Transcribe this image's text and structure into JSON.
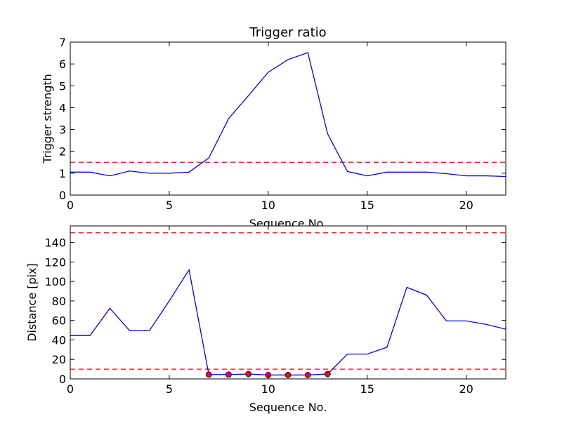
{
  "chart_data": [
    {
      "type": "line",
      "title": "Trigger ratio",
      "xlabel": "Sequence No.",
      "ylabel": "Trigger strength",
      "xlim": [
        0,
        22
      ],
      "ylim": [
        0,
        7
      ],
      "xticks": [
        0,
        5,
        10,
        15,
        20
      ],
      "yticks": [
        0,
        1,
        2,
        3,
        4,
        5,
        6,
        7
      ],
      "grid": false,
      "series": [
        {
          "color": "#0000ff",
          "x": [
            0,
            1,
            2,
            3,
            4,
            5,
            6,
            7,
            8,
            9,
            10,
            11,
            12,
            13,
            14,
            15,
            16,
            17,
            18,
            19,
            20,
            21,
            22
          ],
          "y": [
            1.05,
            1.05,
            0.88,
            1.1,
            1.0,
            1.0,
            1.05,
            1.7,
            3.5,
            4.55,
            5.62,
            6.2,
            6.52,
            2.8,
            1.08,
            0.88,
            1.05,
            1.05,
            1.05,
            0.98,
            0.88,
            0.88,
            0.85
          ]
        }
      ],
      "hlines": [
        {
          "y": 1.5,
          "color": "#ff0000",
          "style": "dashed"
        }
      ]
    },
    {
      "type": "line",
      "title": "",
      "xlabel": "Sequence No.",
      "ylabel": "Distance [pix]",
      "xlim": [
        0,
        22
      ],
      "ylim": [
        0,
        157
      ],
      "xticks": [
        0,
        5,
        10,
        15,
        20
      ],
      "yticks": [
        0,
        20,
        40,
        60,
        80,
        100,
        120,
        140
      ],
      "grid": false,
      "series": [
        {
          "color": "#0000ff",
          "x": [
            0,
            1,
            2,
            3,
            4,
            5,
            6,
            7,
            8,
            9,
            10,
            11,
            12,
            13,
            14,
            15,
            16,
            17,
            18,
            19,
            20,
            21,
            22
          ],
          "y": [
            44.5,
            44.5,
            72.5,
            49.5,
            49.5,
            80,
            112,
            4.5,
            4.5,
            5,
            4,
            4,
            4,
            5,
            25.5,
            25.5,
            32.5,
            94,
            86,
            59.5,
            59.5,
            56,
            51
          ]
        }
      ],
      "markers": {
        "color": "#ff0000",
        "x": [
          7,
          8,
          9,
          10,
          11,
          12,
          13
        ],
        "y": [
          4.5,
          4.5,
          5,
          4,
          4,
          4,
          5
        ]
      },
      "hlines": [
        {
          "y": 10,
          "color": "#ff0000",
          "style": "dashed"
        },
        {
          "y": 150,
          "color": "#ff0000",
          "style": "dashed"
        }
      ]
    }
  ]
}
